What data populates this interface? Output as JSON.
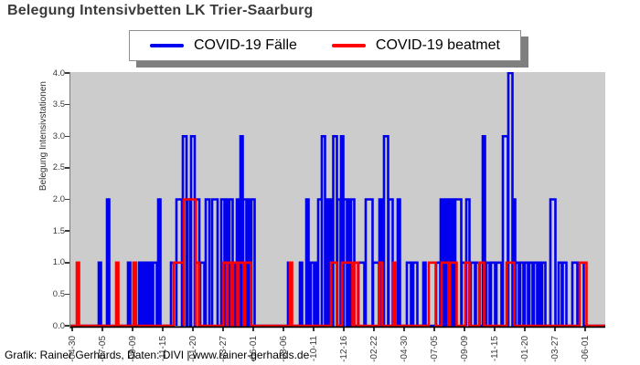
{
  "title": "Belegung Intensivbetten LK Trier-Saarburg",
  "footer": "Grafik: Rainer Gerhards, Daten: DIVI | www.rainer-gerhards.de",
  "legend": {
    "items": [
      {
        "label": "COVID-19 Fälle",
        "color": "#0000ee"
      },
      {
        "label": "COVID-19 beatmet",
        "color": "#ff0000"
      }
    ]
  },
  "chart_data": {
    "type": "line",
    "style": "steps",
    "title": "Belegung Intensivbetten LK Trier-Saarburg",
    "xlabel": "",
    "ylabel": "Belegung Intensivstationen",
    "ylim": [
      0,
      4
    ],
    "xlim": [
      -4,
      1166
    ],
    "grid": false,
    "plot_bg": "#cccccc",
    "legend_position": "top center",
    "x_encoding": "days from first x tick (-04-30); ticks every 66 days",
    "segment_format": "[start_day, end_day, value]; value is 0 between segments",
    "yticks": [
      {
        "value": 0.0,
        "label": "0.0"
      },
      {
        "value": 0.5,
        "label": "0.5"
      },
      {
        "value": 1.0,
        "label": "1.0"
      },
      {
        "value": 1.5,
        "label": "1.5"
      },
      {
        "value": 2.0,
        "label": "2.0"
      },
      {
        "value": 2.5,
        "label": "2.5"
      },
      {
        "value": 3.0,
        "label": "3.0"
      },
      {
        "value": 3.5,
        "label": "3.5"
      },
      {
        "value": 4.0,
        "label": "4.0"
      }
    ],
    "xticks": [
      {
        "pos": 0,
        "label": "-04-30"
      },
      {
        "pos": 66,
        "label": "-07-05"
      },
      {
        "pos": 132,
        "label": "-09-09"
      },
      {
        "pos": 198,
        "label": "-11-15"
      },
      {
        "pos": 264,
        "label": "-01-20"
      },
      {
        "pos": 330,
        "label": "-03-27"
      },
      {
        "pos": 396,
        "label": "-06-01"
      },
      {
        "pos": 462,
        "label": "-08-06"
      },
      {
        "pos": 528,
        "label": "-10-11"
      },
      {
        "pos": 594,
        "label": "-12-16"
      },
      {
        "pos": 660,
        "label": "-02-22"
      },
      {
        "pos": 726,
        "label": "-04-30"
      },
      {
        "pos": 792,
        "label": "-07-05"
      },
      {
        "pos": 858,
        "label": "-09-09"
      },
      {
        "pos": 924,
        "label": "-11-15"
      },
      {
        "pos": 990,
        "label": "-01-20"
      },
      {
        "pos": 1056,
        "label": "-03-27"
      },
      {
        "pos": 1122,
        "label": "-06-01"
      }
    ],
    "series": [
      {
        "name": "COVID-19 Fälle",
        "color": "#0000ee",
        "line_width": 2.6,
        "segments": [
          [
            58,
            63,
            1
          ],
          [
            76,
            81,
            2
          ],
          [
            122,
            127,
            1
          ],
          [
            134,
            139,
            1
          ],
          [
            146,
            151,
            1
          ],
          [
            154,
            159,
            1
          ],
          [
            162,
            167,
            1
          ],
          [
            170,
            175,
            1
          ],
          [
            177,
            185,
            1
          ],
          [
            188,
            193,
            2
          ],
          [
            216,
            228,
            1
          ],
          [
            228,
            240,
            2
          ],
          [
            242,
            250,
            3
          ],
          [
            252,
            258,
            2
          ],
          [
            260,
            268,
            3
          ],
          [
            270,
            278,
            2
          ],
          [
            280,
            289,
            1
          ],
          [
            292,
            300,
            2
          ],
          [
            306,
            318,
            2
          ],
          [
            326,
            333,
            2
          ],
          [
            336,
            341,
            2
          ],
          [
            344,
            351,
            2
          ],
          [
            353,
            358,
            1
          ],
          [
            360,
            365,
            2
          ],
          [
            368,
            373,
            3
          ],
          [
            374,
            381,
            2
          ],
          [
            384,
            389,
            2
          ],
          [
            392,
            399,
            2
          ],
          [
            472,
            476,
            1
          ],
          [
            498,
            503,
            1
          ],
          [
            512,
            517,
            2
          ],
          [
            522,
            529,
            1
          ],
          [
            530,
            535,
            1
          ],
          [
            538,
            546,
            2
          ],
          [
            546,
            553,
            3
          ],
          [
            556,
            561,
            2
          ],
          [
            564,
            569,
            2
          ],
          [
            571,
            579,
            3
          ],
          [
            580,
            587,
            2
          ],
          [
            588,
            593,
            3
          ],
          [
            594,
            601,
            2
          ],
          [
            604,
            609,
            2
          ],
          [
            610,
            617,
            2
          ],
          [
            626,
            639,
            1
          ],
          [
            642,
            657,
            2
          ],
          [
            658,
            671,
            1
          ],
          [
            672,
            677,
            2
          ],
          [
            682,
            691,
            3
          ],
          [
            692,
            701,
            2
          ],
          [
            712,
            717,
            2
          ],
          [
            732,
            741,
            1
          ],
          [
            746,
            755,
            1
          ],
          [
            768,
            773,
            1
          ],
          [
            796,
            805,
            1
          ],
          [
            806,
            811,
            2
          ],
          [
            814,
            819,
            2
          ],
          [
            822,
            827,
            2
          ],
          [
            830,
            835,
            2
          ],
          [
            838,
            851,
            2
          ],
          [
            852,
            862,
            1
          ],
          [
            862,
            869,
            2
          ],
          [
            872,
            881,
            1
          ],
          [
            883,
            891,
            1
          ],
          [
            898,
            903,
            3
          ],
          [
            906,
            913,
            1
          ],
          [
            916,
            925,
            1
          ],
          [
            928,
            939,
            1
          ],
          [
            942,
            953,
            3
          ],
          [
            954,
            963,
            4
          ],
          [
            964,
            969,
            2
          ],
          [
            970,
            977,
            1
          ],
          [
            980,
            987,
            1
          ],
          [
            990,
            997,
            1
          ],
          [
            1000,
            1007,
            1
          ],
          [
            1010,
            1017,
            1
          ],
          [
            1020,
            1025,
            1
          ],
          [
            1028,
            1035,
            1
          ],
          [
            1046,
            1057,
            2
          ],
          [
            1064,
            1071,
            1
          ],
          [
            1073,
            1081,
            1
          ],
          [
            1094,
            1105,
            1
          ],
          [
            1108,
            1119,
            1
          ]
        ]
      },
      {
        "name": "COVID-19 beatmet",
        "color": "#ff0000",
        "line_width": 2.6,
        "segments": [
          [
            10,
            15,
            1
          ],
          [
            96,
            101,
            1
          ],
          [
            134,
            139,
            1
          ],
          [
            222,
            244,
            1
          ],
          [
            244,
            270,
            2
          ],
          [
            270,
            277,
            1
          ],
          [
            330,
            338,
            1
          ],
          [
            340,
            349,
            1
          ],
          [
            352,
            361,
            1
          ],
          [
            364,
            375,
            1
          ],
          [
            378,
            391,
            1
          ],
          [
            476,
            481,
            1
          ],
          [
            566,
            579,
            1
          ],
          [
            590,
            613,
            1
          ],
          [
            617,
            625,
            1
          ],
          [
            672,
            678,
            1
          ],
          [
            702,
            707,
            1
          ],
          [
            780,
            795,
            1
          ],
          [
            808,
            823,
            1
          ],
          [
            826,
            841,
            1
          ],
          [
            860,
            869,
            1
          ],
          [
            890,
            901,
            1
          ],
          [
            950,
            967,
            1
          ],
          [
            1110,
            1125,
            1
          ]
        ]
      }
    ]
  }
}
